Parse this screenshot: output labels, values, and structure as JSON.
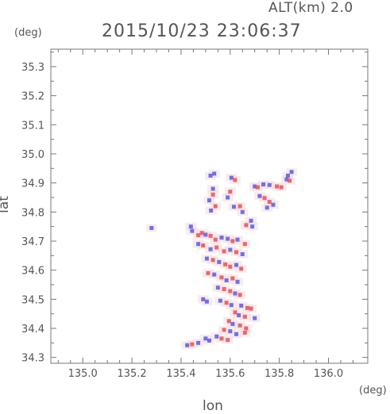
{
  "header": {
    "alt_label": "ALT(km)  2.0",
    "timestamp": "2015/10/23 23:06:37"
  },
  "chart_data": {
    "type": "heatmap",
    "title": "2015/10/23 23:06:37",
    "subtitle": "ALT(km)  2.0",
    "xlabel": "lon",
    "ylabel": "lat",
    "x_unit": "(deg)",
    "y_unit": "(deg)",
    "xlim": [
      134.87,
      136.16
    ],
    "ylim": [
      34.28,
      35.36
    ],
    "x_ticks": [
      135.0,
      135.2,
      135.4,
      135.6,
      135.8,
      136.0
    ],
    "x_tick_labels": [
      "135.0",
      "135.2",
      "135.4",
      "135.6",
      "135.8",
      "136.0"
    ],
    "y_ticks": [
      34.3,
      34.4,
      34.5,
      34.6,
      34.7,
      34.8,
      34.9,
      35.0,
      35.1,
      35.2,
      35.3
    ],
    "y_tick_labels": [
      "34.3",
      "34.4",
      "34.5",
      "34.6",
      "34.7",
      "34.8",
      "34.9",
      "35.0",
      "35.1",
      "35.2",
      "35.3"
    ],
    "grid": false,
    "colors": {
      "positive": "#e8505a",
      "negative": "#5a5ae6",
      "near_zero": "#f2dcdc"
    },
    "cells": [
      {
        "x": 135.28,
        "y": 34.745,
        "s": -1
      },
      {
        "x": 135.52,
        "y": 34.925,
        "s": -1
      },
      {
        "x": 135.535,
        "y": 34.932,
        "s": -1
      },
      {
        "x": 135.605,
        "y": 34.918,
        "s": -1
      },
      {
        "x": 135.62,
        "y": 34.91,
        "s": 1
      },
      {
        "x": 135.7,
        "y": 34.888,
        "s": -1
      },
      {
        "x": 135.712,
        "y": 34.885,
        "s": 1
      },
      {
        "x": 135.735,
        "y": 34.895,
        "s": -1
      },
      {
        "x": 135.76,
        "y": 34.893,
        "s": -1
      },
      {
        "x": 135.79,
        "y": 34.888,
        "s": 1
      },
      {
        "x": 135.808,
        "y": 34.885,
        "s": 1
      },
      {
        "x": 135.83,
        "y": 34.912,
        "s": -1
      },
      {
        "x": 135.842,
        "y": 34.908,
        "s": 1
      },
      {
        "x": 135.835,
        "y": 34.925,
        "s": -1
      },
      {
        "x": 135.85,
        "y": 34.938,
        "s": -1
      },
      {
        "x": 135.53,
        "y": 34.88,
        "s": -1
      },
      {
        "x": 135.53,
        "y": 34.86,
        "s": 1
      },
      {
        "x": 135.515,
        "y": 34.84,
        "s": -1
      },
      {
        "x": 135.522,
        "y": 34.805,
        "s": -1
      },
      {
        "x": 135.54,
        "y": 34.82,
        "s": 1
      },
      {
        "x": 135.6,
        "y": 34.87,
        "s": 1
      },
      {
        "x": 135.59,
        "y": 34.85,
        "s": -1
      },
      {
        "x": 135.615,
        "y": 34.818,
        "s": -1
      },
      {
        "x": 135.64,
        "y": 34.82,
        "s": 1
      },
      {
        "x": 135.65,
        "y": 34.8,
        "s": -1
      },
      {
        "x": 135.72,
        "y": 34.855,
        "s": -1
      },
      {
        "x": 135.74,
        "y": 34.848,
        "s": 1
      },
      {
        "x": 135.76,
        "y": 34.835,
        "s": 1
      },
      {
        "x": 135.775,
        "y": 34.825,
        "s": -1
      },
      {
        "x": 135.75,
        "y": 34.815,
        "s": -1
      },
      {
        "x": 135.685,
        "y": 34.77,
        "s": -1
      },
      {
        "x": 135.665,
        "y": 34.755,
        "s": 1
      },
      {
        "x": 135.69,
        "y": 34.75,
        "s": -1
      },
      {
        "x": 135.44,
        "y": 34.75,
        "s": -1
      },
      {
        "x": 135.445,
        "y": 34.735,
        "s": -1
      },
      {
        "x": 135.47,
        "y": 34.72,
        "s": 1
      },
      {
        "x": 135.485,
        "y": 34.728,
        "s": 1
      },
      {
        "x": 135.5,
        "y": 34.722,
        "s": -1
      },
      {
        "x": 135.52,
        "y": 34.718,
        "s": 1
      },
      {
        "x": 135.54,
        "y": 34.705,
        "s": 1
      },
      {
        "x": 135.565,
        "y": 34.712,
        "s": -1
      },
      {
        "x": 135.59,
        "y": 34.708,
        "s": -1
      },
      {
        "x": 135.61,
        "y": 34.7,
        "s": 1
      },
      {
        "x": 135.63,
        "y": 34.705,
        "s": -1
      },
      {
        "x": 135.66,
        "y": 34.69,
        "s": 1
      },
      {
        "x": 135.47,
        "y": 34.69,
        "s": -1
      },
      {
        "x": 135.49,
        "y": 34.685,
        "s": 1
      },
      {
        "x": 135.52,
        "y": 34.672,
        "s": -1
      },
      {
        "x": 135.545,
        "y": 34.678,
        "s": 1
      },
      {
        "x": 135.575,
        "y": 34.665,
        "s": 1
      },
      {
        "x": 135.6,
        "y": 34.67,
        "s": -1
      },
      {
        "x": 135.625,
        "y": 34.662,
        "s": 1
      },
      {
        "x": 135.65,
        "y": 34.655,
        "s": -1
      },
      {
        "x": 135.505,
        "y": 34.64,
        "s": -1
      },
      {
        "x": 135.53,
        "y": 34.635,
        "s": 1
      },
      {
        "x": 135.555,
        "y": 34.628,
        "s": -1
      },
      {
        "x": 135.58,
        "y": 34.62,
        "s": 1
      },
      {
        "x": 135.6,
        "y": 34.612,
        "s": 1
      },
      {
        "x": 135.625,
        "y": 34.618,
        "s": -1
      },
      {
        "x": 135.645,
        "y": 34.605,
        "s": 1
      },
      {
        "x": 135.51,
        "y": 34.59,
        "s": 1
      },
      {
        "x": 135.535,
        "y": 34.585,
        "s": -1
      },
      {
        "x": 135.565,
        "y": 34.575,
        "s": 1
      },
      {
        "x": 135.585,
        "y": 34.565,
        "s": -1
      },
      {
        "x": 135.61,
        "y": 34.572,
        "s": 1
      },
      {
        "x": 135.63,
        "y": 34.56,
        "s": -1
      },
      {
        "x": 135.55,
        "y": 34.54,
        "s": -1
      },
      {
        "x": 135.575,
        "y": 34.535,
        "s": 1
      },
      {
        "x": 135.6,
        "y": 34.528,
        "s": 1
      },
      {
        "x": 135.62,
        "y": 34.52,
        "s": -1
      },
      {
        "x": 135.64,
        "y": 34.515,
        "s": 1
      },
      {
        "x": 135.49,
        "y": 34.5,
        "s": -1
      },
      {
        "x": 135.505,
        "y": 34.492,
        "s": -1
      },
      {
        "x": 135.56,
        "y": 34.495,
        "s": -1
      },
      {
        "x": 135.585,
        "y": 34.488,
        "s": 1
      },
      {
        "x": 135.605,
        "y": 34.48,
        "s": -1
      },
      {
        "x": 135.645,
        "y": 34.478,
        "s": -1
      },
      {
        "x": 135.67,
        "y": 34.47,
        "s": 1
      },
      {
        "x": 135.685,
        "y": 34.468,
        "s": 1
      },
      {
        "x": 135.62,
        "y": 34.455,
        "s": 1
      },
      {
        "x": 135.635,
        "y": 34.445,
        "s": -1
      },
      {
        "x": 135.66,
        "y": 34.44,
        "s": 1
      },
      {
        "x": 135.7,
        "y": 34.435,
        "s": -1
      },
      {
        "x": 135.595,
        "y": 34.425,
        "s": 1
      },
      {
        "x": 135.61,
        "y": 34.415,
        "s": -1
      },
      {
        "x": 135.64,
        "y": 34.41,
        "s": 1
      },
      {
        "x": 135.665,
        "y": 34.4,
        "s": 1
      },
      {
        "x": 135.575,
        "y": 34.395,
        "s": 1
      },
      {
        "x": 135.6,
        "y": 34.39,
        "s": -1
      },
      {
        "x": 135.625,
        "y": 34.38,
        "s": -1
      },
      {
        "x": 135.66,
        "y": 34.385,
        "s": 1
      },
      {
        "x": 135.545,
        "y": 34.372,
        "s": -1
      },
      {
        "x": 135.565,
        "y": 34.365,
        "s": 1
      },
      {
        "x": 135.59,
        "y": 34.36,
        "s": 1
      },
      {
        "x": 135.5,
        "y": 34.365,
        "s": -1
      },
      {
        "x": 135.515,
        "y": 34.358,
        "s": -1
      },
      {
        "x": 135.47,
        "y": 34.35,
        "s": -1
      },
      {
        "x": 135.445,
        "y": 34.345,
        "s": 1
      },
      {
        "x": 135.425,
        "y": 34.342,
        "s": -1
      }
    ]
  }
}
